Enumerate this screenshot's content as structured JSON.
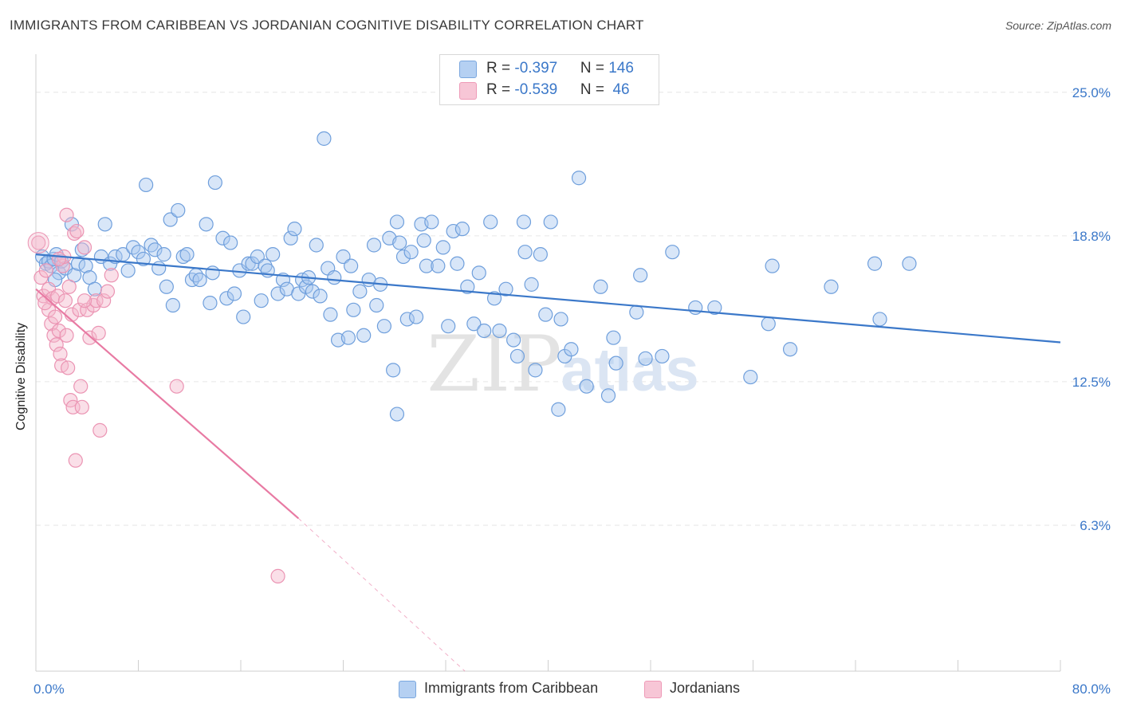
{
  "title": "IMMIGRANTS FROM CARIBBEAN VS JORDANIAN COGNITIVE DISABILITY CORRELATION CHART",
  "source": "Source: ZipAtlas.com",
  "watermark": {
    "zip": "ZIP",
    "atlas": "atlas"
  },
  "colors": {
    "blue": "#3b78c9",
    "blue_fill": "#a9c8ef",
    "blue_stroke": "#6f9fdc",
    "pink": "#e87aa3",
    "pink_fill": "#f4b8cc",
    "pink_stroke": "#eb94b3",
    "grid": "#e6e6e6",
    "tick_label": "#3b78c9"
  },
  "legend_top": {
    "rows": [
      {
        "r_label": "R = ",
        "r_value": "-0.397",
        "n_label": "N = ",
        "n_value": "146"
      },
      {
        "r_label": "R = ",
        "r_value": "-0.539",
        "n_label": "N = ",
        "n_value": " 46"
      }
    ]
  },
  "legend_bottom": [
    "Immigrants from Caribbean",
    "Jordanians"
  ],
  "chart_data": {
    "type": "scatter",
    "title": "IMMIGRANTS FROM CARIBBEAN VS JORDANIAN COGNITIVE DISABILITY CORRELATION CHART",
    "xlabel": "",
    "ylabel": "Cognitive Disability",
    "xlim": [
      0,
      80
    ],
    "ylim": [
      0,
      26.3
    ],
    "x_tick_labels": [
      "0.0%",
      "80.0%"
    ],
    "y_ticks": [
      6.3,
      12.5,
      18.8,
      25.0
    ],
    "y_tick_labels": [
      "6.3%",
      "12.5%",
      "18.8%",
      "25.0%"
    ],
    "grid": true,
    "legend_position": "top-center",
    "series": [
      {
        "name": "Immigrants from Caribbean",
        "r": -0.397,
        "n": 146,
        "trend": {
          "x": [
            0,
            80
          ],
          "y": [
            18.0,
            14.2
          ]
        },
        "points": [
          [
            0.5,
            17.9
          ],
          [
            0.8,
            17.6
          ],
          [
            1.0,
            17.7
          ],
          [
            1.2,
            17.5
          ],
          [
            1.4,
            17.8
          ],
          [
            1.6,
            18.0
          ],
          [
            1.8,
            17.2
          ],
          [
            2.0,
            17.7
          ],
          [
            1.5,
            16.9
          ],
          [
            2.3,
            17.4
          ],
          [
            2.8,
            19.3
          ],
          [
            3.0,
            17.1
          ],
          [
            3.3,
            17.6
          ],
          [
            3.6,
            18.2
          ],
          [
            3.9,
            17.5
          ],
          [
            4.2,
            17.0
          ],
          [
            4.6,
            16.5
          ],
          [
            5.1,
            17.9
          ],
          [
            5.4,
            19.3
          ],
          [
            5.8,
            17.6
          ],
          [
            6.2,
            17.9
          ],
          [
            6.8,
            18.0
          ],
          [
            7.2,
            17.3
          ],
          [
            7.6,
            18.3
          ],
          [
            8.0,
            18.1
          ],
          [
            8.4,
            17.8
          ],
          [
            8.6,
            21.0
          ],
          [
            9.0,
            18.4
          ],
          [
            9.3,
            18.2
          ],
          [
            9.6,
            17.4
          ],
          [
            10.0,
            18.0
          ],
          [
            10.2,
            16.6
          ],
          [
            10.5,
            19.5
          ],
          [
            10.7,
            15.8
          ],
          [
            11.1,
            19.9
          ],
          [
            11.5,
            17.9
          ],
          [
            11.8,
            18.0
          ],
          [
            12.2,
            16.9
          ],
          [
            12.5,
            17.1
          ],
          [
            12.8,
            16.9
          ],
          [
            13.3,
            19.3
          ],
          [
            13.6,
            15.9
          ],
          [
            13.8,
            17.2
          ],
          [
            14.0,
            21.1
          ],
          [
            14.6,
            18.7
          ],
          [
            14.9,
            16.1
          ],
          [
            15.2,
            18.5
          ],
          [
            15.5,
            16.3
          ],
          [
            15.9,
            17.3
          ],
          [
            16.2,
            15.3
          ],
          [
            16.6,
            17.6
          ],
          [
            16.9,
            17.6
          ],
          [
            17.3,
            17.9
          ],
          [
            17.6,
            16.0
          ],
          [
            17.9,
            17.5
          ],
          [
            18.1,
            17.3
          ],
          [
            18.5,
            18.0
          ],
          [
            18.9,
            16.3
          ],
          [
            19.3,
            16.9
          ],
          [
            19.6,
            16.5
          ],
          [
            19.9,
            18.7
          ],
          [
            20.2,
            19.1
          ],
          [
            20.5,
            16.3
          ],
          [
            20.8,
            16.9
          ],
          [
            21.1,
            16.6
          ],
          [
            21.3,
            17.0
          ],
          [
            21.6,
            16.4
          ],
          [
            21.9,
            18.4
          ],
          [
            22.2,
            16.2
          ],
          [
            22.5,
            23.0
          ],
          [
            22.8,
            17.4
          ],
          [
            23.0,
            15.4
          ],
          [
            23.3,
            17.0
          ],
          [
            23.6,
            14.3
          ],
          [
            24.0,
            17.9
          ],
          [
            24.4,
            14.4
          ],
          [
            24.6,
            17.5
          ],
          [
            24.8,
            15.6
          ],
          [
            25.3,
            16.4
          ],
          [
            25.6,
            14.5
          ],
          [
            26.0,
            16.9
          ],
          [
            26.4,
            18.4
          ],
          [
            26.6,
            15.8
          ],
          [
            26.9,
            16.7
          ],
          [
            27.2,
            14.9
          ],
          [
            27.6,
            18.7
          ],
          [
            27.9,
            13.0
          ],
          [
            28.2,
            19.4
          ],
          [
            28.4,
            18.5
          ],
          [
            28.7,
            17.9
          ],
          [
            29.0,
            15.2
          ],
          [
            29.3,
            18.1
          ],
          [
            29.7,
            15.3
          ],
          [
            30.1,
            19.3
          ],
          [
            30.3,
            18.6
          ],
          [
            30.5,
            17.5
          ],
          [
            30.9,
            19.4
          ],
          [
            31.4,
            17.5
          ],
          [
            31.8,
            18.3
          ],
          [
            32.2,
            14.9
          ],
          [
            32.6,
            19.0
          ],
          [
            32.9,
            17.6
          ],
          [
            33.3,
            19.1
          ],
          [
            33.7,
            16.6
          ],
          [
            34.2,
            15.0
          ],
          [
            34.6,
            17.2
          ],
          [
            35.0,
            14.7
          ],
          [
            35.5,
            19.4
          ],
          [
            35.8,
            16.1
          ],
          [
            36.2,
            14.7
          ],
          [
            36.7,
            16.5
          ],
          [
            37.3,
            14.3
          ],
          [
            37.6,
            13.6
          ],
          [
            38.1,
            19.4
          ],
          [
            38.2,
            18.1
          ],
          [
            38.7,
            16.7
          ],
          [
            39.0,
            13.0
          ],
          [
            39.4,
            18.0
          ],
          [
            39.8,
            15.4
          ],
          [
            40.2,
            19.4
          ],
          [
            40.8,
            11.3
          ],
          [
            41.0,
            15.2
          ],
          [
            41.3,
            13.6
          ],
          [
            41.8,
            13.9
          ],
          [
            42.4,
            21.3
          ],
          [
            43.0,
            12.3
          ],
          [
            44.1,
            16.6
          ],
          [
            44.7,
            11.9
          ],
          [
            45.1,
            14.4
          ],
          [
            45.3,
            13.3
          ],
          [
            46.9,
            15.5
          ],
          [
            47.2,
            17.1
          ],
          [
            47.6,
            13.5
          ],
          [
            49.7,
            18.1
          ],
          [
            48.9,
            13.6
          ],
          [
            51.5,
            15.7
          ],
          [
            53.0,
            15.7
          ],
          [
            55.8,
            12.7
          ],
          [
            57.2,
            15.0
          ],
          [
            57.5,
            17.5
          ],
          [
            58.9,
            13.9
          ],
          [
            62.1,
            16.6
          ],
          [
            65.5,
            17.6
          ],
          [
            65.9,
            15.2
          ],
          [
            68.2,
            17.6
          ],
          [
            28.2,
            11.1
          ]
        ]
      },
      {
        "name": "Jordanians",
        "r": -0.539,
        "n": 46,
        "trend": {
          "x": [
            0,
            20.5
          ],
          "y": [
            16.5,
            6.6
          ]
        },
        "trend_extension": {
          "x": [
            20.5,
            33.5
          ],
          "y": [
            6.6,
            0.0
          ]
        },
        "points": [
          [
            0.2,
            18.5
          ],
          [
            0.4,
            17.0
          ],
          [
            0.6,
            16.2
          ],
          [
            0.8,
            17.3
          ],
          [
            1.0,
            16.5
          ],
          [
            1.0,
            15.6
          ],
          [
            1.2,
            15.0
          ],
          [
            1.3,
            16.1
          ],
          [
            1.4,
            14.5
          ],
          [
            1.5,
            15.3
          ],
          [
            1.6,
            14.1
          ],
          [
            1.7,
            16.2
          ],
          [
            1.8,
            14.7
          ],
          [
            1.9,
            13.7
          ],
          [
            2.0,
            13.2
          ],
          [
            2.1,
            17.5
          ],
          [
            2.2,
            17.9
          ],
          [
            2.3,
            16.0
          ],
          [
            2.4,
            14.5
          ],
          [
            2.5,
            13.1
          ],
          [
            2.6,
            16.6
          ],
          [
            2.7,
            11.7
          ],
          [
            2.8,
            15.4
          ],
          [
            2.9,
            11.4
          ],
          [
            3.0,
            18.9
          ],
          [
            3.1,
            9.1
          ],
          [
            3.2,
            19.0
          ],
          [
            3.4,
            15.6
          ],
          [
            3.5,
            12.3
          ],
          [
            3.6,
            11.4
          ],
          [
            3.8,
            18.3
          ],
          [
            4.0,
            15.6
          ],
          [
            4.2,
            14.4
          ],
          [
            4.5,
            15.8
          ],
          [
            4.7,
            16.0
          ],
          [
            4.9,
            14.6
          ],
          [
            5.0,
            10.4
          ],
          [
            5.3,
            16.0
          ],
          [
            5.6,
            16.4
          ],
          [
            5.9,
            17.1
          ],
          [
            2.4,
            19.7
          ],
          [
            3.8,
            16.0
          ],
          [
            11.0,
            12.3
          ],
          [
            18.9,
            4.1
          ],
          [
            0.7,
            15.9
          ],
          [
            1.8,
            17.8
          ]
        ]
      }
    ]
  }
}
